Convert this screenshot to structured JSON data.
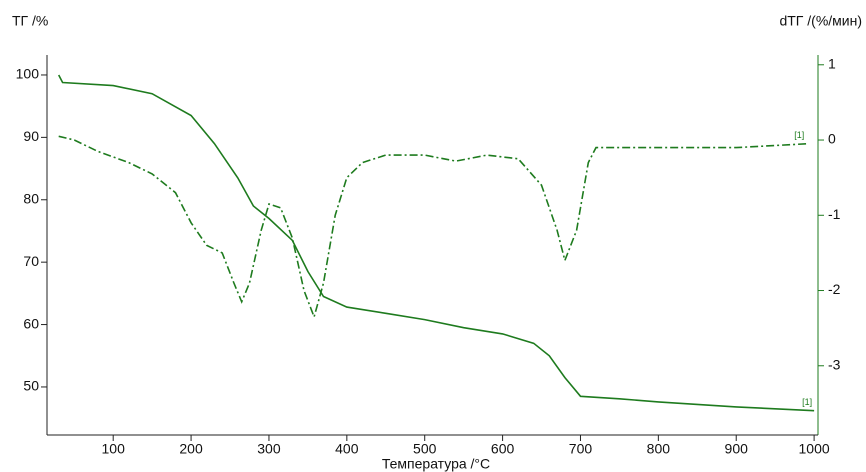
{
  "chart_data": {
    "type": "line",
    "y_label": "ТГ /%",
    "y2_label": "dТГ /(%/мин)",
    "x_label": "Температура /°C",
    "xlim": [
      15,
      1005
    ],
    "xticks": [
      100,
      200,
      300,
      400,
      500,
      600,
      700,
      800,
      900,
      1000
    ],
    "ylim": [
      42.3,
      103.2
    ],
    "yticks": [
      50,
      60,
      70,
      80,
      90,
      100
    ],
    "y2lim": [
      -3.92,
      1.13
    ],
    "y2ticks": [
      -3,
      -2,
      -1,
      0,
      1
    ],
    "series": [
      {
        "color": "#1e7b1e",
        "dash": "solid",
        "end_label": "[1]",
        "x": [
          30,
          35,
          100,
          150,
          200,
          230,
          260,
          280,
          300,
          330,
          350,
          370,
          400,
          450,
          500,
          550,
          600,
          640,
          660,
          680,
          700,
          750,
          800,
          900,
          1000
        ],
        "values": [
          100,
          98.8,
          98.3,
          97,
          93.5,
          89,
          83.5,
          79,
          77,
          73.5,
          68.5,
          64.5,
          62.8,
          61.8,
          60.8,
          59.5,
          58.5,
          57,
          55,
          51.5,
          48.5,
          48.1,
          47.6,
          46.8,
          46.2
        ]
      },
      {
        "color": "#1e7b1e",
        "dash": "dashdot",
        "axis": "y2",
        "end_label": "[1]",
        "x": [
          30,
          50,
          80,
          120,
          150,
          180,
          200,
          220,
          240,
          255,
          265,
          275,
          290,
          300,
          315,
          330,
          345,
          358,
          370,
          385,
          400,
          420,
          450,
          500,
          540,
          580,
          620,
          650,
          670,
          680,
          695,
          710,
          720,
          800,
          900,
          990
        ],
        "values": [
          0.05,
          0,
          -0.15,
          -0.3,
          -0.45,
          -0.7,
          -1.1,
          -1.4,
          -1.5,
          -1.9,
          -2.15,
          -1.9,
          -1.2,
          -0.85,
          -0.9,
          -1.3,
          -2.0,
          -2.35,
          -1.9,
          -1.0,
          -0.5,
          -0.3,
          -0.2,
          -0.2,
          -0.28,
          -0.2,
          -0.25,
          -0.6,
          -1.2,
          -1.6,
          -1.2,
          -0.3,
          -0.1,
          -0.1,
          -0.1,
          -0.05
        ]
      }
    ]
  }
}
